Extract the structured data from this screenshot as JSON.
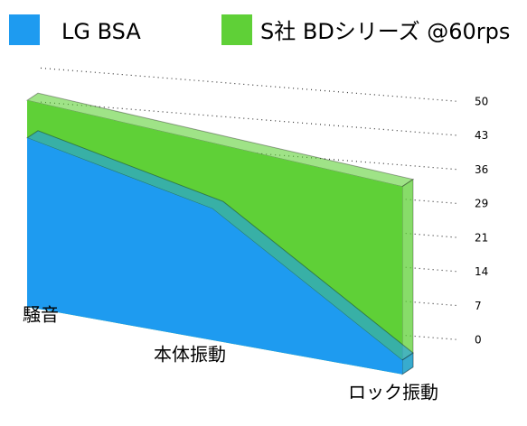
{
  "chart_data": {
    "type": "area3d",
    "categories": [
      "騒音",
      "本体振動",
      "ロック振動"
    ],
    "series": [
      {
        "name": "LG BSA",
        "color": "#1e9bf0",
        "values": [
          36,
          28,
          3
        ]
      },
      {
        "name": "S社 BDシリーズ @60rps",
        "color": "#5fd037",
        "values": [
          44,
          42,
          40
        ]
      }
    ],
    "ylim": [
      0,
      50
    ],
    "yticks": [
      0,
      {
        "value": 7.14,
        "label": "7"
      },
      {
        "value": 14.29,
        "label": "14"
      },
      {
        "value": 21.43,
        "label": "21"
      },
      {
        "value": 28.57,
        "label": "29"
      },
      {
        "value": 35.71,
        "label": "36"
      },
      {
        "value": 42.86,
        "label": "43"
      },
      50
    ],
    "grid": true
  }
}
